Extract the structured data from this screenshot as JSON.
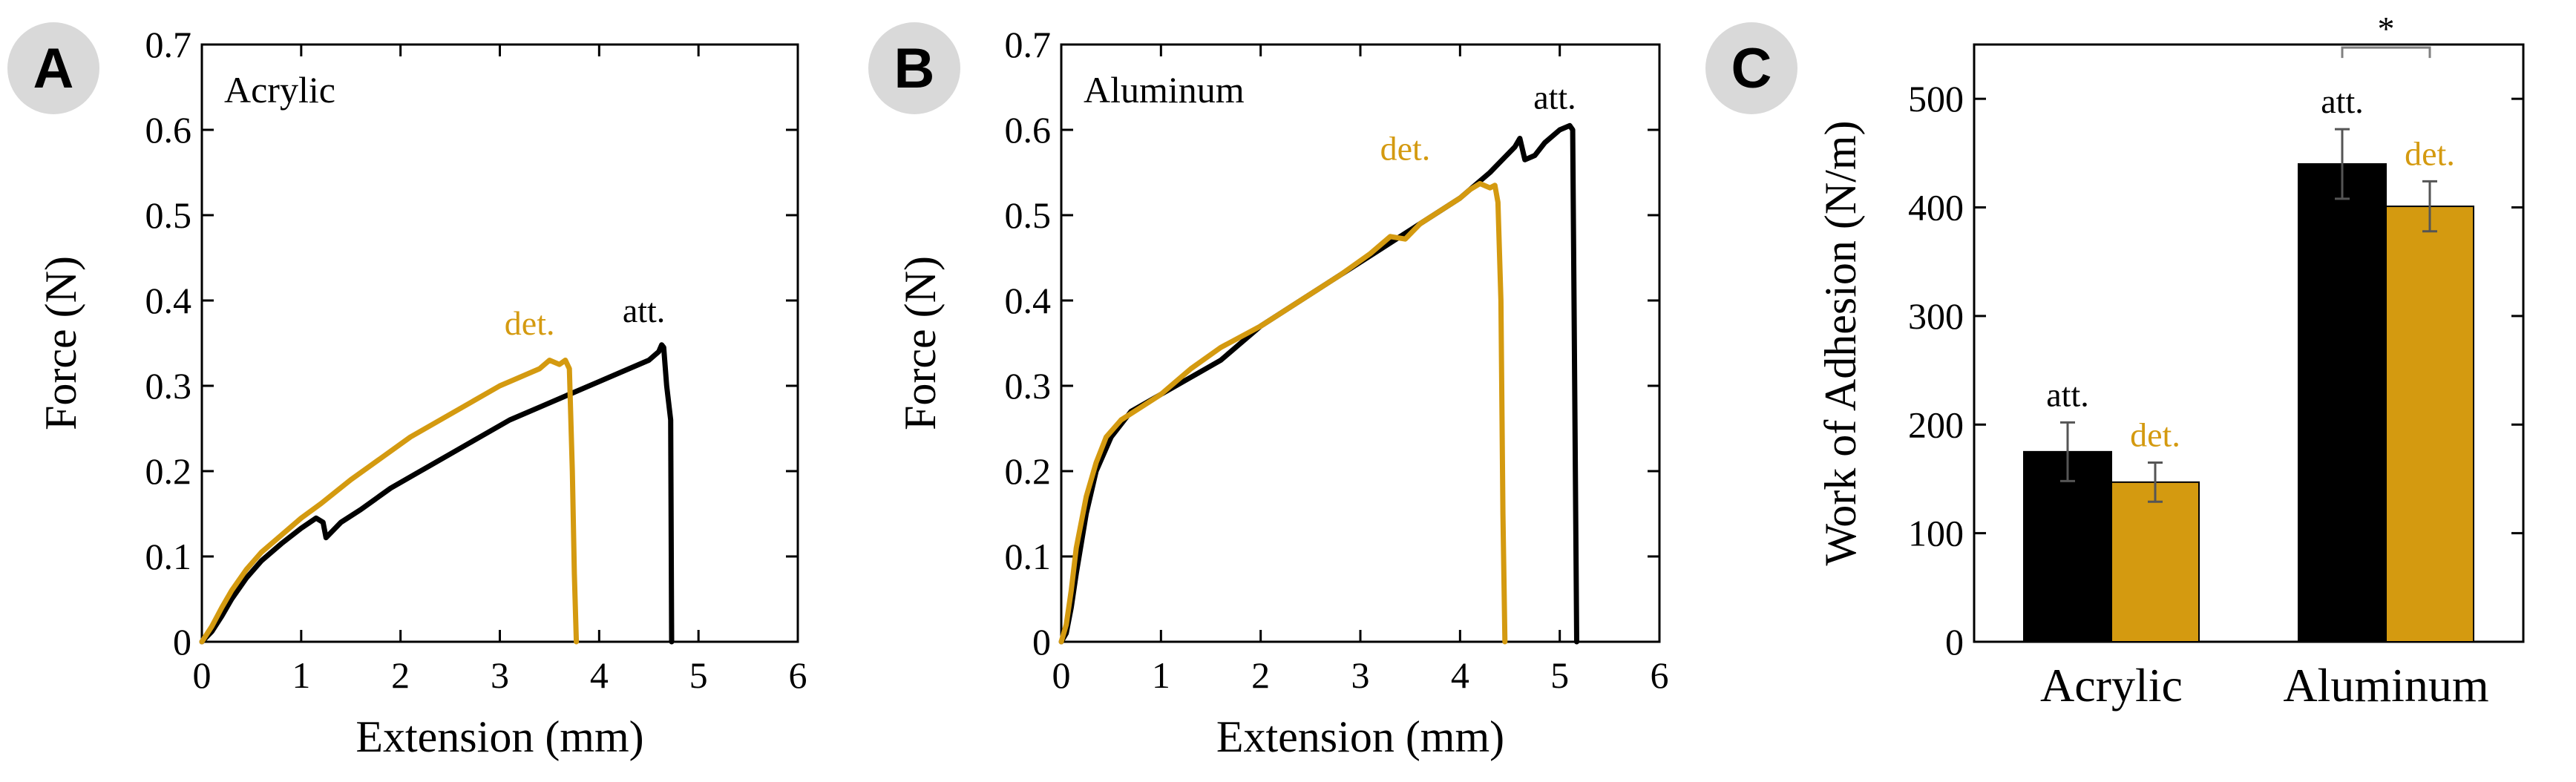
{
  "colors": {
    "attached": "#000000",
    "detached": "#d49a10",
    "axis": "#000000",
    "badge_bg": "#d9d9d9",
    "sig_line": "#808080"
  },
  "chart_data": [
    {
      "panel": "A",
      "type": "line",
      "annotation": "Acrylic",
      "xlabel": "Extension (mm)",
      "ylabel": "Force (N)",
      "xlim": [
        0,
        6
      ],
      "ylim": [
        0,
        0.7
      ],
      "xticks": [
        0,
        1,
        2,
        3,
        4,
        5,
        6
      ],
      "yticks": [
        0,
        0.1,
        0.2,
        0.3,
        0.4,
        0.5,
        0.6,
        0.7
      ],
      "xtick_labels": [
        "0",
        "1",
        "2",
        "3",
        "4",
        "5",
        "6"
      ],
      "ytick_labels": [
        "0",
        "0.1",
        "0.2",
        "0.3",
        "0.4",
        "0.5",
        "0.6",
        "0.7"
      ],
      "series": [
        {
          "name": "att.",
          "color_key": "attached",
          "label_at": [
            4.45,
            0.375
          ],
          "x": [
            0,
            0.1,
            0.2,
            0.3,
            0.45,
            0.6,
            0.8,
            1.0,
            1.15,
            1.22,
            1.25,
            1.3,
            1.4,
            1.6,
            1.9,
            2.2,
            2.5,
            2.8,
            3.1,
            3.4,
            3.7,
            4.0,
            4.3,
            4.5,
            4.6,
            4.63,
            4.65,
            4.68,
            4.72,
            4.73
          ],
          "y": [
            0,
            0.012,
            0.03,
            0.05,
            0.075,
            0.095,
            0.115,
            0.133,
            0.145,
            0.14,
            0.122,
            0.128,
            0.14,
            0.155,
            0.18,
            0.2,
            0.22,
            0.24,
            0.26,
            0.275,
            0.29,
            0.305,
            0.32,
            0.33,
            0.34,
            0.348,
            0.345,
            0.3,
            0.26,
            0
          ]
        },
        {
          "name": "det.",
          "color_key": "detached",
          "label_at": [
            3.3,
            0.36
          ],
          "x": [
            0,
            0.1,
            0.2,
            0.3,
            0.45,
            0.6,
            0.8,
            1.0,
            1.2,
            1.5,
            1.8,
            2.1,
            2.4,
            2.7,
            3.0,
            3.2,
            3.4,
            3.5,
            3.6,
            3.66,
            3.7,
            3.73,
            3.75,
            3.77
          ],
          "y": [
            0,
            0.018,
            0.04,
            0.06,
            0.085,
            0.105,
            0.125,
            0.145,
            0.162,
            0.19,
            0.215,
            0.24,
            0.26,
            0.28,
            0.3,
            0.31,
            0.32,
            0.33,
            0.325,
            0.33,
            0.32,
            0.2,
            0.08,
            0
          ]
        }
      ]
    },
    {
      "panel": "B",
      "type": "line",
      "annotation": "Aluminum",
      "xlabel": "Extension (mm)",
      "ylabel": "Force (N)",
      "xlim": [
        0,
        6
      ],
      "ylim": [
        0,
        0.7
      ],
      "xticks": [
        0,
        1,
        2,
        3,
        4,
        5,
        6
      ],
      "yticks": [
        0,
        0.1,
        0.2,
        0.3,
        0.4,
        0.5,
        0.6,
        0.7
      ],
      "xtick_labels": [
        "0",
        "1",
        "2",
        "3",
        "4",
        "5",
        "6"
      ],
      "ytick_labels": [
        "0",
        "0.1",
        "0.2",
        "0.3",
        "0.4",
        "0.5",
        "0.6",
        "0.7"
      ],
      "series": [
        {
          "name": "att.",
          "color_key": "attached",
          "label_at": [
            4.95,
            0.625
          ],
          "x": [
            0,
            0.05,
            0.1,
            0.15,
            0.25,
            0.35,
            0.5,
            0.7,
            1.0,
            1.3,
            1.6,
            2.0,
            2.4,
            2.8,
            3.2,
            3.6,
            4.0,
            4.3,
            4.55,
            4.6,
            4.65,
            4.75,
            4.85,
            5.0,
            5.1,
            5.13,
            5.15,
            5.17
          ],
          "y": [
            0,
            0.01,
            0.04,
            0.08,
            0.15,
            0.2,
            0.24,
            0.27,
            0.29,
            0.31,
            0.33,
            0.37,
            0.4,
            0.43,
            0.46,
            0.49,
            0.52,
            0.55,
            0.58,
            0.59,
            0.565,
            0.57,
            0.585,
            0.6,
            0.605,
            0.6,
            0.3,
            0
          ]
        },
        {
          "name": "det.",
          "color_key": "detached",
          "label_at": [
            3.45,
            0.565
          ],
          "x": [
            0,
            0.05,
            0.1,
            0.15,
            0.25,
            0.35,
            0.45,
            0.6,
            0.8,
            1.0,
            1.3,
            1.6,
            2.0,
            2.4,
            2.8,
            3.1,
            3.3,
            3.45,
            3.6,
            3.8,
            4.0,
            4.1,
            4.2,
            4.3,
            4.35,
            4.38,
            4.41,
            4.43,
            4.45
          ],
          "y": [
            0,
            0.02,
            0.06,
            0.11,
            0.17,
            0.21,
            0.24,
            0.26,
            0.275,
            0.29,
            0.32,
            0.345,
            0.37,
            0.4,
            0.43,
            0.455,
            0.475,
            0.472,
            0.49,
            0.505,
            0.52,
            0.53,
            0.537,
            0.532,
            0.535,
            0.515,
            0.4,
            0.15,
            0
          ]
        }
      ]
    },
    {
      "panel": "C",
      "type": "bar",
      "ylabel": "Work of Adhesion (N/m)",
      "ylim": [
        0,
        550
      ],
      "yticks": [
        0,
        100,
        200,
        300,
        400,
        500
      ],
      "ytick_labels": [
        "0",
        "100",
        "200",
        "300",
        "400",
        "500"
      ],
      "categories": [
        "Acrylic",
        "Aluminum"
      ],
      "series": [
        {
          "name": "att.",
          "color_key": "attached",
          "values": [
            175,
            440
          ],
          "errors": [
            27,
            32
          ]
        },
        {
          "name": "det.",
          "color_key": "detached",
          "values": [
            147,
            401
          ],
          "errors": [
            18,
            23
          ]
        }
      ],
      "significance": {
        "group": "Aluminum",
        "label": "*"
      }
    }
  ]
}
